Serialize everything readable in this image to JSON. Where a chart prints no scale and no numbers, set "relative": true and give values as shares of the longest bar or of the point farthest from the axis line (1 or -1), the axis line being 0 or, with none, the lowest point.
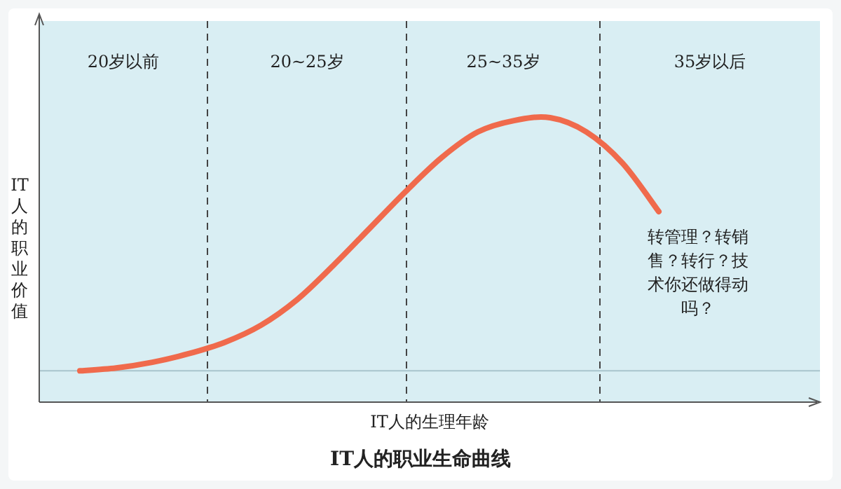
{
  "chart_data": {
    "type": "line",
    "relative": true,
    "title": "IT人的职业生命曲线",
    "xlabel": "IT人的生理年龄",
    "ylabel": "IT人的职业价值",
    "categories": [
      null,
      null,
      null,
      null,
      null,
      null,
      null,
      null,
      null,
      null,
      null,
      null,
      null,
      null,
      null,
      null,
      null
    ],
    "series": [
      {
        "color": "#f06a4c",
        "values": [
          0.11,
          0.12,
          0.14,
          0.17,
          0.21,
          0.27,
          0.36,
          0.48,
          0.61,
          0.74,
          0.86,
          0.95,
          0.99,
          1,
          0.95,
          0.84,
          0.67
        ]
      }
    ],
    "ref_lines": [
      {
        "axis": "y",
        "value": 0.11,
        "line_style": "solid",
        "color": "#a9c4cc"
      }
    ],
    "annotations": [
      "20岁以前",
      "20~25岁",
      "25~35岁",
      "35岁以后",
      "转管理？转销售？转行？技术你还做得动吗？"
    ],
    "marker": "none",
    "line_style": "solid"
  }
}
